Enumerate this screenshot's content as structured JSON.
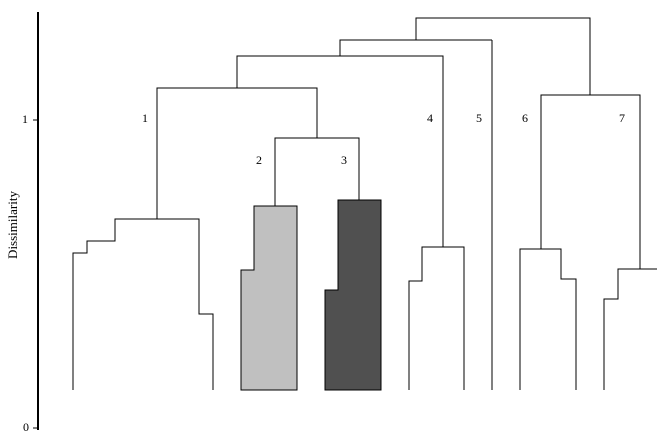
{
  "figure": {
    "type": "dendrogram",
    "y_axis": {
      "label": "Dissimilarity",
      "ticks": [
        {
          "value": 0,
          "label": "0"
        },
        {
          "value": 1,
          "label": "1"
        }
      ]
    },
    "cluster_labels": [
      "1",
      "2",
      "3",
      "4",
      "5",
      "6",
      "7"
    ],
    "colors": {
      "line": "#000000",
      "cluster_2_fill": "#c0c0c0",
      "cluster_3_fill": "#505050"
    }
  }
}
